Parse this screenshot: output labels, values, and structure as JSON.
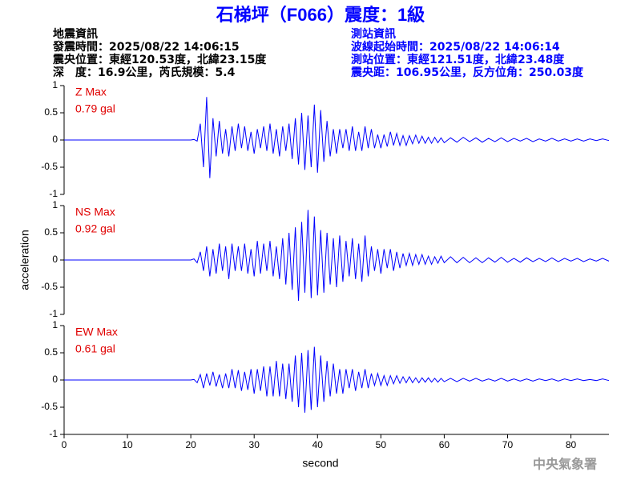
{
  "header": {
    "title": "石梯坪（F066）震度：1級",
    "quake_info": [
      "地震資訊",
      "發震時間：2025/08/22 14:06:15",
      "震央位置：東經120.53度，北緯23.15度",
      "深　度：16.9公里，芮氏規模：5.4"
    ],
    "station_info": [
      "測站資訊",
      "波線起始時間：2025/08/22 14:06:14",
      "測站位置：東經121.51度，北緯23.48度",
      "震央距：106.95公里，反方位角：250.03度"
    ],
    "credit": "中央氣象署"
  },
  "chart_data": [
    {
      "type": "line",
      "annotation": "0.79 gal",
      "xlim": [
        0,
        86
      ],
      "ylim": [
        -1,
        1
      ],
      "yticks": [
        -1,
        -0.5,
        0,
        0.5,
        1
      ],
      "x": [
        0,
        20,
        20.5,
        21,
        21.5,
        22,
        22.5,
        23,
        23.5,
        24,
        24.5,
        25,
        25.5,
        26,
        26.5,
        27,
        27.5,
        28,
        28.5,
        29,
        29.5,
        30,
        30.5,
        31,
        31.5,
        32,
        32.5,
        33,
        33.5,
        34,
        34.5,
        35,
        35.5,
        36,
        36.5,
        37,
        37.5,
        38,
        38.5,
        39,
        39.5,
        40,
        40.5,
        41,
        41.5,
        42,
        42.5,
        43,
        43.5,
        44,
        44.5,
        45,
        45.5,
        46,
        46.5,
        47,
        47.5,
        48,
        48.5,
        49,
        49.5,
        50,
        50.5,
        51,
        51.5,
        52,
        52.5,
        53,
        53.5,
        54,
        54.5,
        55,
        55.5,
        56,
        56.5,
        57,
        57.5,
        58,
        58.5,
        59,
        59.5,
        60,
        61,
        62,
        63,
        64,
        65,
        66,
        67,
        68,
        69,
        70,
        71,
        72,
        73,
        74,
        75,
        76,
        77,
        78,
        79,
        80,
        81,
        82,
        83,
        84,
        85,
        86
      ],
      "series": [
        {
          "name": "Z Max",
          "color": "#0000ff",
          "values": [
            0,
            0,
            0.01,
            -0.02,
            0.3,
            -0.5,
            0.79,
            -0.7,
            0.4,
            -0.3,
            0.35,
            -0.25,
            0.2,
            -0.3,
            0.25,
            -0.2,
            0.3,
            -0.15,
            0.25,
            -0.2,
            0.15,
            -0.25,
            0.2,
            -0.15,
            0.25,
            -0.2,
            0.3,
            -0.25,
            0.2,
            -0.3,
            0.25,
            -0.2,
            0.3,
            -0.35,
            0.4,
            -0.45,
            0.5,
            -0.55,
            0.45,
            -0.5,
            0.65,
            -0.6,
            0.55,
            -0.4,
            0.35,
            -0.3,
            0.2,
            -0.25,
            0.2,
            -0.15,
            0.2,
            -0.2,
            0.25,
            -0.2,
            0.15,
            -0.2,
            0.25,
            -0.15,
            0.2,
            -0.15,
            0.1,
            -0.15,
            0.1,
            -0.12,
            0.15,
            -0.1,
            0.12,
            -0.1,
            0.08,
            -0.1,
            0.08,
            -0.07,
            0.09,
            -0.06,
            0.07,
            -0.06,
            0.05,
            -0.06,
            0.05,
            -0.05,
            0.04,
            -0.05,
            0.04,
            -0.04,
            0.05,
            -0.03,
            0.04,
            -0.04,
            0.03,
            -0.03,
            0.04,
            -0.03,
            0.03,
            -0.02,
            0.03,
            -0.03,
            0.02,
            -0.02,
            0.03,
            -0.02,
            0.02,
            -0.02,
            0.02,
            -0.02,
            0.02,
            -0.01,
            0.02,
            -0.01
          ]
        }
      ]
    },
    {
      "type": "line",
      "annotation": "0.92 gal",
      "y_label": "acceleration",
      "xlim": [
        0,
        86
      ],
      "ylim": [
        -1,
        1
      ],
      "yticks": [
        -1,
        -0.5,
        0,
        0.5,
        1
      ],
      "x": [
        0,
        20,
        20.5,
        21,
        21.5,
        22,
        22.5,
        23,
        23.5,
        24,
        24.5,
        25,
        25.5,
        26,
        26.5,
        27,
        27.5,
        28,
        28.5,
        29,
        29.5,
        30,
        30.5,
        31,
        31.5,
        32,
        32.5,
        33,
        33.5,
        34,
        34.5,
        35,
        35.5,
        36,
        36.5,
        37,
        37.5,
        38,
        38.5,
        39,
        39.5,
        40,
        40.5,
        41,
        41.5,
        42,
        42.5,
        43,
        43.5,
        44,
        44.5,
        45,
        45.5,
        46,
        46.5,
        47,
        47.5,
        48,
        48.5,
        49,
        49.5,
        50,
        50.5,
        51,
        51.5,
        52,
        52.5,
        53,
        53.5,
        54,
        54.5,
        55,
        55.5,
        56,
        56.5,
        57,
        57.5,
        58,
        58.5,
        59,
        59.5,
        60,
        61,
        62,
        63,
        64,
        65,
        66,
        67,
        68,
        69,
        70,
        71,
        72,
        73,
        74,
        75,
        76,
        77,
        78,
        79,
        80,
        81,
        82,
        83,
        84,
        85,
        86
      ],
      "series": [
        {
          "name": "NS Max",
          "color": "#0000ff",
          "values": [
            0,
            0,
            0.02,
            -0.05,
            0.15,
            -0.2,
            0.25,
            -0.3,
            0.2,
            -0.25,
            0.3,
            -0.2,
            0.25,
            -0.35,
            0.3,
            -0.2,
            0.25,
            -0.2,
            0.3,
            -0.25,
            0.2,
            -0.3,
            0.35,
            -0.25,
            0.3,
            -0.2,
            0.35,
            -0.3,
            0.25,
            -0.35,
            0.4,
            -0.45,
            0.5,
            -0.55,
            0.6,
            -0.75,
            0.7,
            -0.6,
            0.92,
            -0.7,
            0.8,
            -0.65,
            0.55,
            -0.6,
            0.5,
            -0.45,
            0.4,
            -0.5,
            0.45,
            -0.4,
            0.35,
            -0.3,
            0.4,
            -0.35,
            0.3,
            -0.4,
            0.45,
            -0.3,
            0.25,
            -0.2,
            0.2,
            -0.25,
            0.2,
            -0.15,
            0.2,
            -0.2,
            0.15,
            -0.15,
            0.12,
            -0.1,
            0.12,
            -0.1,
            0.1,
            -0.08,
            0.1,
            -0.08,
            0.07,
            -0.08,
            0.06,
            -0.06,
            0.07,
            -0.05,
            0.06,
            -0.05,
            0.05,
            -0.05,
            0.04,
            -0.05,
            0.04,
            -0.04,
            0.05,
            -0.04,
            0.03,
            -0.04,
            0.04,
            -0.03,
            0.03,
            -0.03,
            0.04,
            -0.03,
            0.03,
            -0.02,
            0.03,
            -0.03,
            0.02,
            -0.02,
            0.03,
            -0.02
          ]
        }
      ]
    },
    {
      "type": "line",
      "annotation": "0.61 gal",
      "x_label": "second",
      "xlim": [
        0,
        86
      ],
      "xticks": [
        0,
        10,
        20,
        30,
        40,
        50,
        60,
        70,
        80
      ],
      "ylim": [
        -1,
        1
      ],
      "yticks": [
        -1,
        -0.5,
        0,
        0.5,
        1
      ],
      "x": [
        0,
        20,
        20.5,
        21,
        21.5,
        22,
        22.5,
        23,
        23.5,
        24,
        24.5,
        25,
        25.5,
        26,
        26.5,
        27,
        27.5,
        28,
        28.5,
        29,
        29.5,
        30,
        30.5,
        31,
        31.5,
        32,
        32.5,
        33,
        33.5,
        34,
        34.5,
        35,
        35.5,
        36,
        36.5,
        37,
        37.5,
        38,
        38.5,
        39,
        39.5,
        40,
        40.5,
        41,
        41.5,
        42,
        42.5,
        43,
        43.5,
        44,
        44.5,
        45,
        45.5,
        46,
        46.5,
        47,
        47.5,
        48,
        48.5,
        49,
        49.5,
        50,
        50.5,
        51,
        51.5,
        52,
        52.5,
        53,
        53.5,
        54,
        54.5,
        55,
        55.5,
        56,
        56.5,
        57,
        57.5,
        58,
        58.5,
        59,
        59.5,
        60,
        61,
        62,
        63,
        64,
        65,
        66,
        67,
        68,
        69,
        70,
        71,
        72,
        73,
        74,
        75,
        76,
        77,
        78,
        79,
        80,
        81,
        82,
        83,
        84,
        85,
        86
      ],
      "series": [
        {
          "name": "EW Max",
          "color": "#0000ff",
          "values": [
            0,
            0,
            0.01,
            -0.05,
            0.1,
            -0.15,
            0.12,
            -0.1,
            0.15,
            -0.12,
            0.1,
            -0.15,
            0.12,
            -0.15,
            0.2,
            -0.15,
            0.18,
            -0.2,
            0.15,
            -0.18,
            0.2,
            -0.25,
            0.2,
            -0.2,
            0.25,
            -0.3,
            0.25,
            -0.3,
            0.35,
            -0.3,
            0.3,
            -0.35,
            0.3,
            -0.4,
            0.45,
            -0.5,
            0.5,
            -0.6,
            0.55,
            -0.55,
            0.61,
            -0.5,
            0.45,
            -0.4,
            0.35,
            -0.3,
            0.3,
            -0.25,
            0.2,
            -0.25,
            0.2,
            -0.15,
            0.2,
            -0.2,
            0.15,
            -0.15,
            0.2,
            -0.15,
            0.12,
            -0.1,
            0.12,
            -0.1,
            0.08,
            -0.1,
            0.08,
            -0.07,
            0.08,
            -0.06,
            0.06,
            -0.05,
            0.06,
            -0.05,
            0.04,
            -0.05,
            0.04,
            -0.04,
            0.04,
            -0.04,
            0.03,
            -0.04,
            0.03,
            -0.03,
            0.03,
            -0.03,
            0.03,
            -0.02,
            0.03,
            -0.02,
            0.02,
            -0.02,
            0.03,
            -0.02,
            0.02,
            -0.02,
            0.02,
            -0.02,
            0.02,
            -0.01,
            0.02,
            -0.02,
            0.02,
            -0.01,
            0.02,
            -0.01,
            0.01,
            -0.01,
            0.02,
            -0.01
          ]
        }
      ]
    }
  ]
}
